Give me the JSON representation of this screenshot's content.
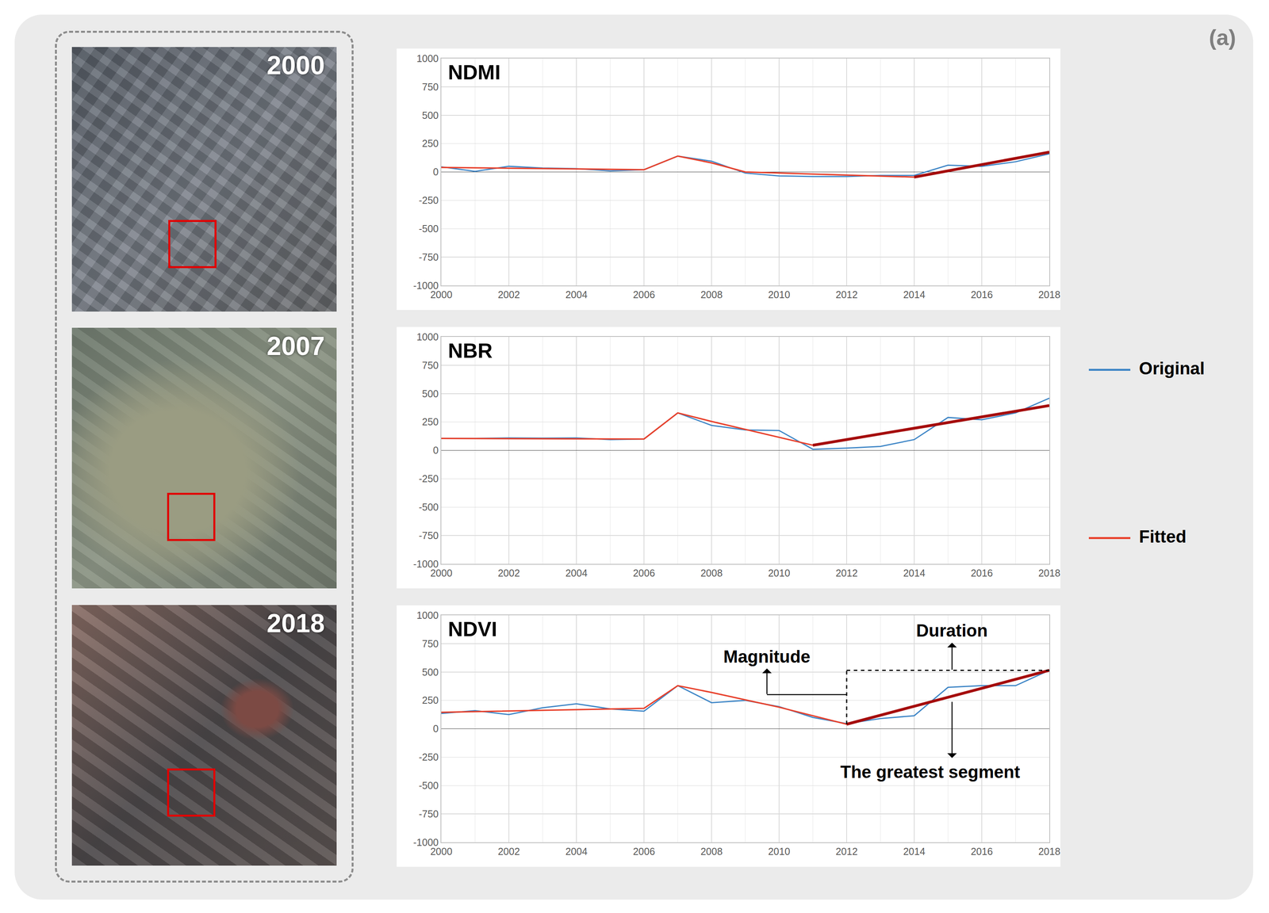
{
  "panel_label": "(a)",
  "images": [
    {
      "label": "2000"
    },
    {
      "label": "2007"
    },
    {
      "label": "2018"
    }
  ],
  "chart_data": [
    {
      "type": "line",
      "title": "NDMI",
      "x": [
        2000,
        2001,
        2002,
        2003,
        2004,
        2005,
        2006,
        2007,
        2008,
        2009,
        2010,
        2011,
        2012,
        2013,
        2014,
        2015,
        2016,
        2017,
        2018
      ],
      "xlim": [
        2000,
        2018
      ],
      "xticks": [
        2000,
        2002,
        2004,
        2006,
        2008,
        2010,
        2012,
        2014,
        2016,
        2018
      ],
      "ylim": [
        -1000,
        1000
      ],
      "yticks": [
        -1000,
        -750,
        -500,
        -250,
        0,
        250,
        500,
        750,
        1000
      ],
      "grid": true,
      "series": [
        {
          "name": "Original",
          "color": "#3d85c6",
          "values": [
            45,
            5,
            50,
            35,
            30,
            10,
            20,
            140,
            95,
            -10,
            -35,
            -40,
            -40,
            -30,
            -30,
            60,
            50,
            90,
            160
          ]
        },
        {
          "name": "Fitted",
          "color": "#e8412c",
          "x": [
            2000,
            2006,
            2007,
            2008,
            2009,
            2014,
            2018
          ],
          "values": [
            40,
            20,
            140,
            80,
            0,
            -45,
            175
          ]
        }
      ],
      "greatest_segment": {
        "color": "#a50d0d",
        "x": [
          2014,
          2018
        ],
        "values": [
          -45,
          175
        ]
      }
    },
    {
      "type": "line",
      "title": "NBR",
      "x": [
        2000,
        2001,
        2002,
        2003,
        2004,
        2005,
        2006,
        2007,
        2008,
        2009,
        2010,
        2011,
        2012,
        2013,
        2014,
        2015,
        2016,
        2017,
        2018
      ],
      "xlim": [
        2000,
        2018
      ],
      "xticks": [
        2000,
        2002,
        2004,
        2006,
        2008,
        2010,
        2012,
        2014,
        2016,
        2018
      ],
      "ylim": [
        -1000,
        1000
      ],
      "yticks": [
        -1000,
        -750,
        -500,
        -250,
        0,
        250,
        500,
        750,
        1000
      ],
      "grid": true,
      "legend": "right",
      "series": [
        {
          "name": "Original",
          "color": "#3d85c6",
          "values": [
            105,
            105,
            110,
            108,
            110,
            95,
            100,
            330,
            220,
            180,
            175,
            10,
            20,
            35,
            95,
            290,
            270,
            330,
            460
          ]
        },
        {
          "name": "Fitted",
          "color": "#e8412c",
          "x": [
            2000,
            2006,
            2007,
            2008,
            2011,
            2018
          ],
          "values": [
            105,
            100,
            330,
            255,
            45,
            395
          ]
        }
      ],
      "greatest_segment": {
        "color": "#a50d0d",
        "x": [
          2011,
          2018
        ],
        "values": [
          45,
          395
        ]
      }
    },
    {
      "type": "line",
      "title": "NDVI",
      "x": [
        2000,
        2001,
        2002,
        2003,
        2004,
        2005,
        2006,
        2007,
        2008,
        2009,
        2010,
        2011,
        2012,
        2013,
        2014,
        2015,
        2016,
        2017,
        2018
      ],
      "xlim": [
        2000,
        2018
      ],
      "xticks": [
        2000,
        2002,
        2004,
        2006,
        2008,
        2010,
        2012,
        2014,
        2016,
        2018
      ],
      "ylim": [
        -1000,
        1000
      ],
      "yticks": [
        -1000,
        -750,
        -500,
        -250,
        0,
        250,
        500,
        750,
        1000
      ],
      "grid": true,
      "series": [
        {
          "name": "Original",
          "color": "#3d85c6",
          "values": [
            135,
            160,
            125,
            185,
            220,
            175,
            155,
            380,
            230,
            250,
            195,
            100,
            45,
            90,
            115,
            365,
            380,
            380,
            515
          ]
        },
        {
          "name": "Fitted",
          "color": "#e8412c",
          "x": [
            2000,
            2006,
            2007,
            2008,
            2010,
            2012,
            2018
          ],
          "values": [
            145,
            180,
            380,
            320,
            190,
            40,
            515
          ]
        }
      ],
      "greatest_segment": {
        "color": "#a50d0d",
        "x": [
          2012,
          2018
        ],
        "values": [
          40,
          515
        ]
      },
      "annotations": [
        "Magnitude",
        "Duration",
        "The greatest segment"
      ]
    }
  ]
}
